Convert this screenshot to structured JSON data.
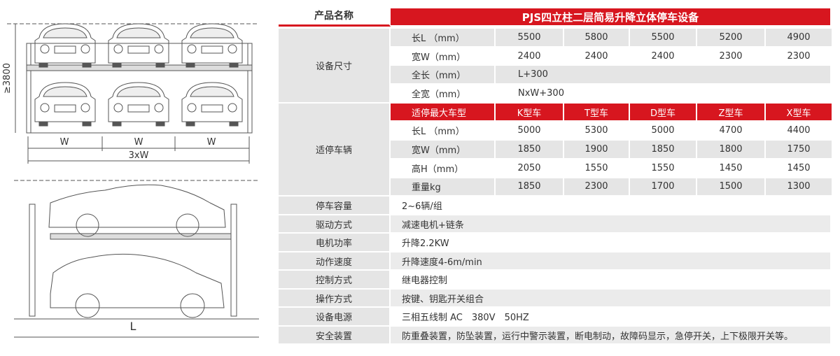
{
  "header": {
    "label": "产品名称",
    "title": "PJS四立柱二层简易升降立体停车设备"
  },
  "dimensions": {
    "label": "设备尺寸",
    "rows": [
      {
        "name": "长L （mm）",
        "values": [
          5500,
          5800,
          5500,
          5200,
          4900
        ]
      },
      {
        "name": "宽W（mm）",
        "values": [
          2400,
          2400,
          2400,
          2300,
          2300
        ]
      },
      {
        "name": "全长（mm）",
        "values": [
          "L+300"
        ]
      },
      {
        "name": "全宽（mm）",
        "values": [
          "NxW+300"
        ]
      }
    ]
  },
  "vehicles": {
    "label": "适停车辆",
    "header": {
      "name": "适停最大车型",
      "values": [
        "K型车",
        "T型车",
        "D型车",
        "Z型车",
        "X型车"
      ]
    },
    "rows": [
      {
        "name": "长L （mm）",
        "values": [
          5000,
          5300,
          5000,
          4700,
          4400
        ]
      },
      {
        "name": "宽W（mm）",
        "values": [
          1850,
          1900,
          1850,
          1800,
          1750
        ]
      },
      {
        "name": "高H（mm）",
        "values": [
          2050,
          1550,
          1550,
          1450,
          1450
        ]
      },
      {
        "name": "重量kg",
        "values": [
          1850,
          2300,
          1700,
          1500,
          1300
        ]
      }
    ]
  },
  "specs": [
    {
      "name": "停车容量",
      "value": "2~6辆/组"
    },
    {
      "name": "驱动方式",
      "value": "减速电机+链条"
    },
    {
      "name": "电机功率",
      "value": "升降2.2KW"
    },
    {
      "name": "动作速度",
      "value": "升降速度4-6m/min"
    },
    {
      "name": "控制方式",
      "value": "继电器控制"
    },
    {
      "name": "操作方式",
      "value": "按键、钥匙开关组合"
    },
    {
      "name": "设备电源",
      "value": "三相五线制 AC　380V　50HZ"
    },
    {
      "name": "安全装置",
      "value": "防重叠装置，防坠装置，运行中警示装置，断电制动，故障码显示，急停开关，上下极限开关等。"
    }
  ],
  "drawing": {
    "height": "≥3800",
    "bay_width": "W",
    "total_width": "3xW",
    "length": "L"
  }
}
